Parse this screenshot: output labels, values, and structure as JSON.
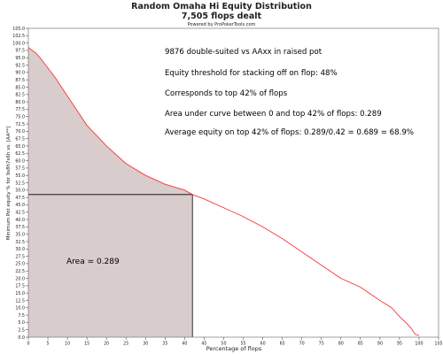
{
  "chart_data": {
    "type": "area",
    "title": "Random Omaha Hi Equity Distribution",
    "subtitle": "7,505 flops dealt",
    "credit": "Powered by ProPokerTools.com",
    "xlabel": "Percentage of flops",
    "ylabel": "Minimum Pot equity % for 9s8h7s6h vs. [AA**]",
    "xlim": [
      0,
      105
    ],
    "ylim": [
      0,
      105
    ],
    "x_ticks": [
      "0",
      "5",
      "10",
      "15",
      "20",
      "25",
      "30",
      "35",
      "40",
      "45",
      "50",
      "55",
      "60",
      "65",
      "70",
      "75",
      "80",
      "85",
      "90",
      "95",
      "100",
      "105"
    ],
    "y_ticks": [
      "0.0",
      "2.5",
      "5.0",
      "7.5",
      "10.0",
      "12.5",
      "15.0",
      "17.5",
      "20.0",
      "22.5",
      "25.0",
      "27.5",
      "30.0",
      "32.5",
      "35.0",
      "37.5",
      "40.0",
      "42.5",
      "45.0",
      "47.5",
      "50.0",
      "52.5",
      "55.0",
      "57.5",
      "60.0",
      "62.5",
      "65.0",
      "67.5",
      "70.0",
      "72.5",
      "75.0",
      "77.5",
      "80.0",
      "82.5",
      "85.0",
      "87.5",
      "90.0",
      "92.5",
      "95.0",
      "97.5",
      "100.0",
      "102.5",
      "105.0"
    ],
    "grid": false,
    "series": [
      {
        "color": "#ff3333",
        "x": [
          0,
          1,
          2,
          3,
          5,
          7,
          10,
          13,
          15,
          20,
          25,
          30,
          35,
          40,
          42,
          45,
          50,
          55,
          60,
          65,
          70,
          75,
          80,
          85,
          90,
          93,
          95,
          97,
          98,
          99,
          100
        ],
        "y": [
          98.5,
          97.5,
          96.5,
          95,
          91.5,
          88,
          82,
          76,
          72,
          65,
          59,
          55,
          52,
          50,
          48.5,
          47,
          44,
          41,
          37.5,
          33.5,
          29,
          24.5,
          20,
          17,
          12.5,
          10,
          7,
          4.5,
          3,
          1,
          0.5
        ]
      }
    ],
    "shaded_region": {
      "x_end": 42,
      "y_threshold": 48.5,
      "fill": "#d9cccc"
    },
    "annotations": [
      "9876 double-suited vs AAxx in raised pot",
      "Equity threshold for stacking off on flop: 48%",
      "Corresponds to top 42% of flops",
      "Area under curve between 0 and top 42% of flops: 0.289",
      "Average equity on top 42% of flops: 0.289/0.42 = 0.689 = 68.9%"
    ],
    "area_label": "Area = 0.289"
  }
}
